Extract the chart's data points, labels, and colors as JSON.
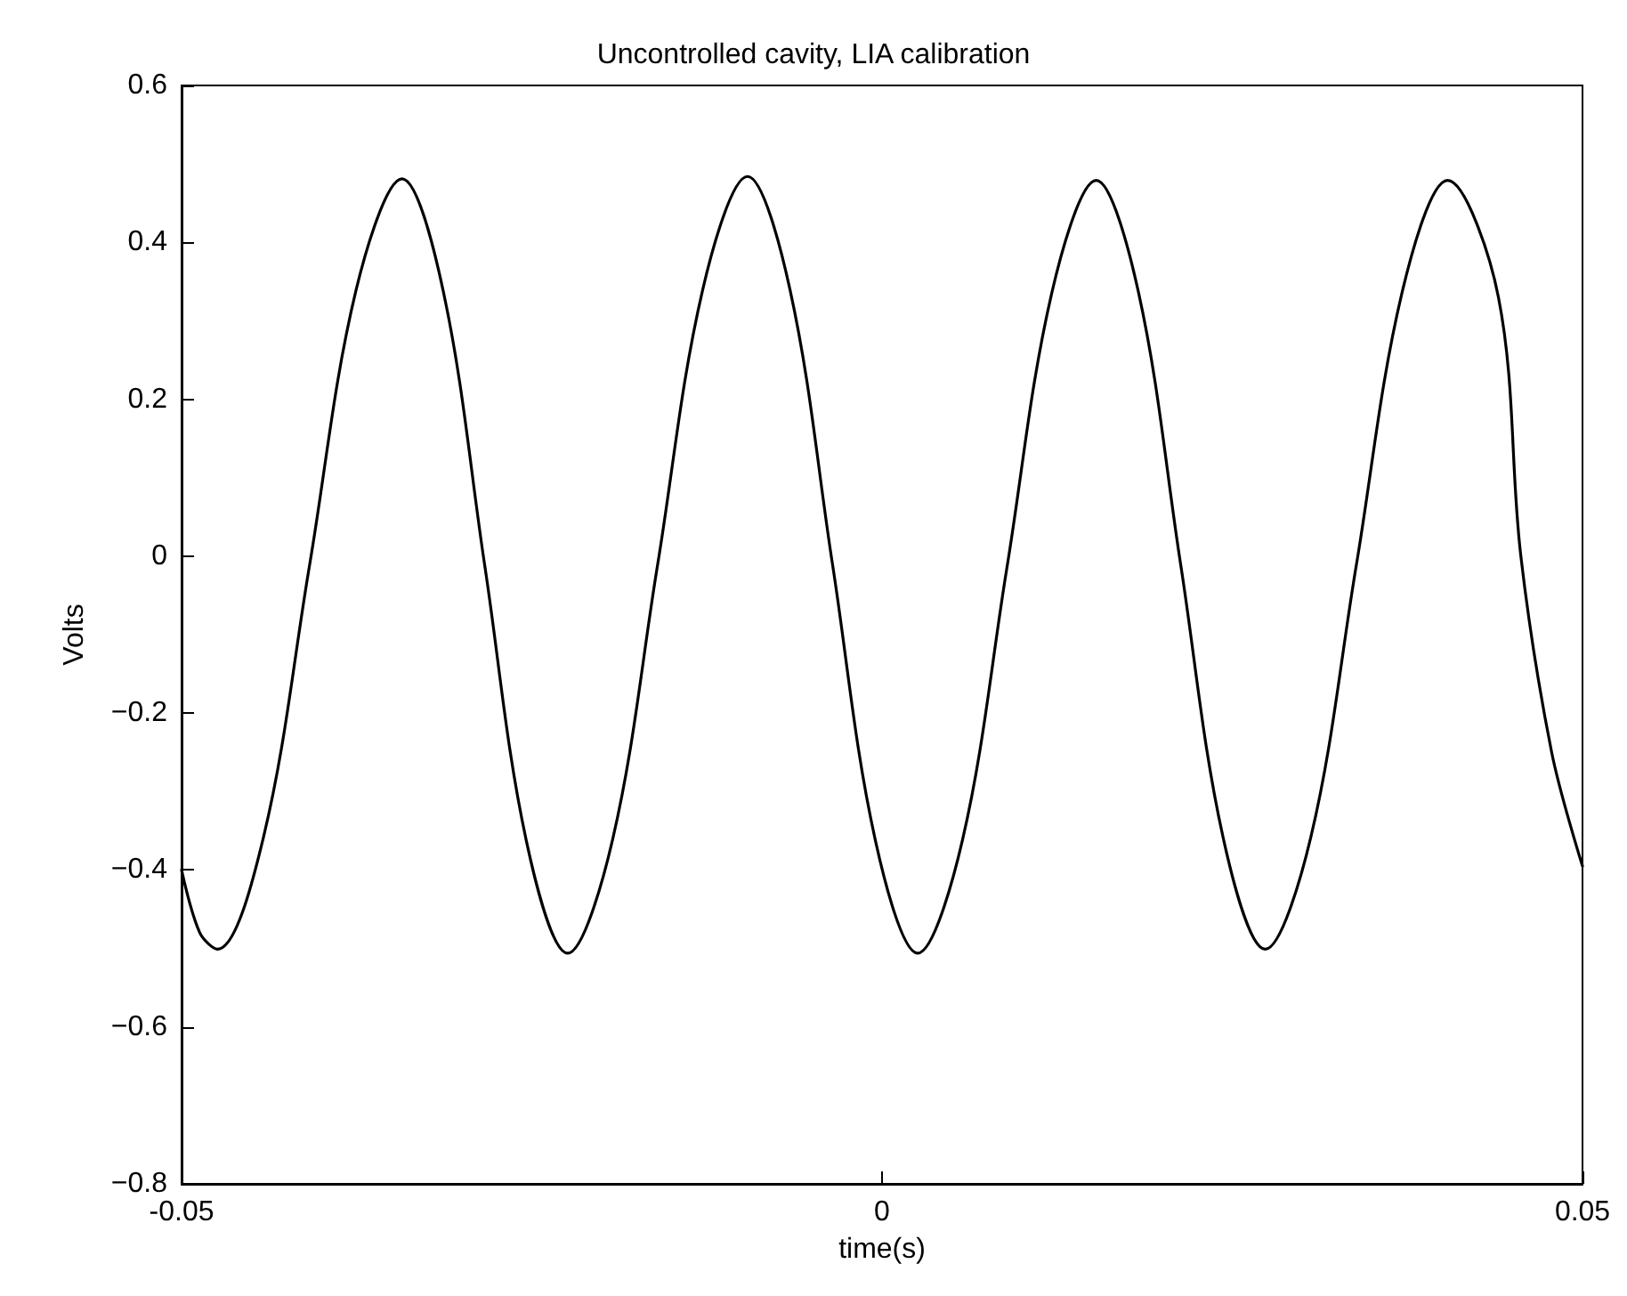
{
  "chart_data": {
    "type": "line",
    "title": "Uncontrolled cavity, LIA calibration",
    "xlabel": "time(s)",
    "ylabel": "Volts",
    "x": [
      -0.05,
      -0.0487,
      -0.04744,
      -0.04415,
      -0.04085,
      -0.03756,
      -0.03426,
      -0.03131,
      -0.02835,
      -0.0254,
      -0.02244,
      -0.01923,
      -0.01602,
      -0.01281,
      -0.0096,
      -0.00656,
      -0.00353,
      -0.00049,
      0.00255,
      0.00574,
      0.00892,
      0.01211,
      0.01529,
      0.01831,
      0.02132,
      0.02434,
      0.02735,
      0.03061,
      0.03386,
      0.03712,
      0.04037,
      0.044,
      0.0456,
      0.0478,
      0.05
    ],
    "series": [
      {
        "color": "#000000",
        "values": [
          -0.4,
          -0.48,
          -0.501,
          -0.358,
          -0.01,
          0.338,
          0.481,
          0.337,
          -0.013,
          -0.362,
          -0.506,
          -0.361,
          -0.011,
          0.339,
          0.484,
          0.339,
          -0.011,
          -0.361,
          -0.506,
          -0.362,
          -0.014,
          0.335,
          0.479,
          0.336,
          -0.011,
          -0.358,
          -0.501,
          -0.358,
          -0.011,
          0.336,
          0.479,
          0.33,
          0.0,
          -0.25,
          -0.395
        ]
      }
    ],
    "xlim": [
      -0.05,
      0.05
    ],
    "xticks": [
      -0.05,
      0,
      0.05
    ],
    "ylim": [
      -0.8,
      0.6
    ],
    "yticks": [
      -0.8,
      -0.6,
      -0.4,
      -0.2,
      0,
      0.2,
      0.4,
      0.6
    ],
    "grid": false,
    "marker": "none",
    "line_style": "solid"
  }
}
